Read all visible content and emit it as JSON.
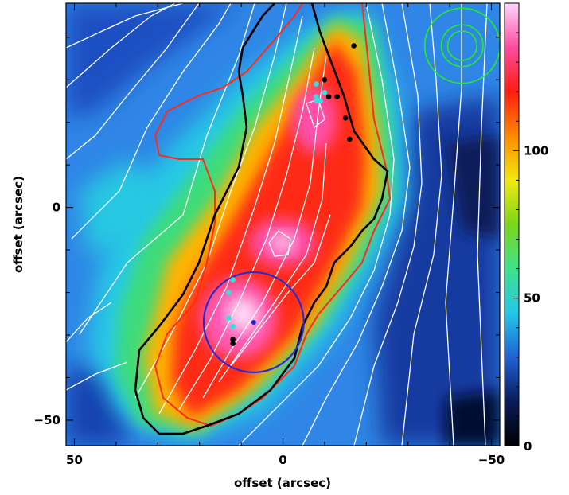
{
  "chart_data": {
    "type": "heatmap",
    "xlabel": "offset (arcsec)",
    "ylabel": "offset (arcsec)",
    "xlim": [
      52,
      -52
    ],
    "ylim": [
      -56,
      48
    ],
    "x_ticks": [
      50,
      0,
      -50
    ],
    "x_tick_labels": [
      "50",
      "0",
      "−50"
    ],
    "y_ticks": [
      0,
      -50
    ],
    "y_tick_labels": [
      "0",
      "−50"
    ],
    "colorbar": {
      "range": [
        0,
        150
      ],
      "ticks": [
        0,
        50,
        100
      ],
      "tick_labels": [
        "0",
        "50",
        "100"
      ],
      "colormap": [
        "#000000",
        "#0b1a5a",
        "#1e62d6",
        "#25c7e8",
        "#3fe28a",
        "#7ad61a",
        "#f1ea10",
        "#ff8a00",
        "#ff1e10",
        "#ff4b9e",
        "#ffd6ff"
      ]
    },
    "ridge_intensity_points": [
      {
        "x": -9,
        "y": 28,
        "value": 125
      },
      {
        "x": -5,
        "y": 17,
        "value": 138
      },
      {
        "x": -5,
        "y": 5,
        "value": 115
      },
      {
        "x": 0,
        "y": -9,
        "value": 135
      },
      {
        "x": 2,
        "y": -14,
        "value": 142
      },
      {
        "x": 6,
        "y": -24,
        "value": 150
      },
      {
        "x": 10,
        "y": -30,
        "value": 140
      },
      {
        "x": 18,
        "y": -42,
        "value": 110
      }
    ],
    "black_markers": [
      {
        "x": -17,
        "y": 38
      },
      {
        "x": -10,
        "y": 30
      },
      {
        "x": -13,
        "y": 26
      },
      {
        "x": -11,
        "y": 26
      },
      {
        "x": -15,
        "y": 21
      },
      {
        "x": -16,
        "y": 16
      },
      {
        "x": 12,
        "y": -31
      },
      {
        "x": 12,
        "y": -32
      }
    ],
    "cyan_markers": [
      {
        "x": -8,
        "y": 29
      },
      {
        "x": -10,
        "y": 27
      },
      {
        "x": -8,
        "y": 26
      },
      {
        "x": -9,
        "y": 25
      },
      {
        "x": -8,
        "y": 25
      },
      {
        "x": 12,
        "y": -17
      },
      {
        "x": 13,
        "y": -20
      },
      {
        "x": 13,
        "y": -26
      },
      {
        "x": 12,
        "y": -28
      }
    ],
    "blue_markers": [
      {
        "x": 7,
        "y": -27
      }
    ],
    "blue_circle": {
      "center_x": 7,
      "center_y": -27,
      "radius": 12
    },
    "beam": {
      "center_x": -43,
      "center_y": 38,
      "radii": [
        3.5,
        5,
        9
      ]
    },
    "colors": {
      "blue_circle": "#2a2ad0",
      "beam": "#22ee22",
      "contour_white": "#ffffff",
      "contour_red": "#ff2a1a",
      "contour_black": "#000000",
      "black_marker": "#000000",
      "cyan_marker": "#33e0e0",
      "blue_marker": "#2020d8"
    },
    "grid": false
  }
}
